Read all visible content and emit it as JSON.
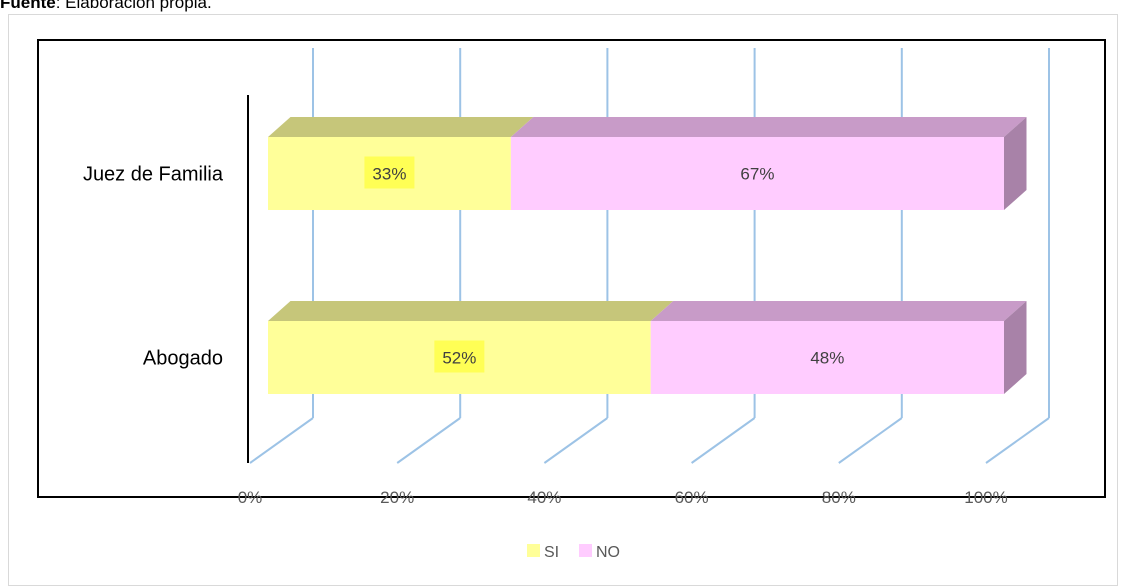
{
  "caption": {
    "bold": "Fuente",
    "rest": ": Elaboración propia."
  },
  "chart_data": {
    "type": "bar",
    "orientation": "horizontal",
    "stacked": true,
    "percent": true,
    "categories": [
      "Juez de Familia",
      "Abogado"
    ],
    "series": [
      {
        "name": "SI",
        "values": [
          33,
          52
        ],
        "labels": [
          "33%",
          "52%"
        ],
        "color": "#ffff99"
      },
      {
        "name": "NO",
        "values": [
          67,
          48
        ],
        "labels": [
          "67%",
          "48%"
        ],
        "color": "#ffccff"
      }
    ],
    "x_ticks": [
      "0%",
      "20%",
      "40%",
      "60%",
      "80%",
      "100%"
    ],
    "xlim": [
      0,
      100
    ],
    "legend": "bottom",
    "grid": true
  },
  "colors": {
    "si_top": "#c6c67a",
    "no_top": "#c89bc8",
    "no_side": "#a882a8",
    "grid": "#9dc3e6",
    "axis": "#000000",
    "label_bg_si": "#ffff55",
    "text": "#404040"
  }
}
